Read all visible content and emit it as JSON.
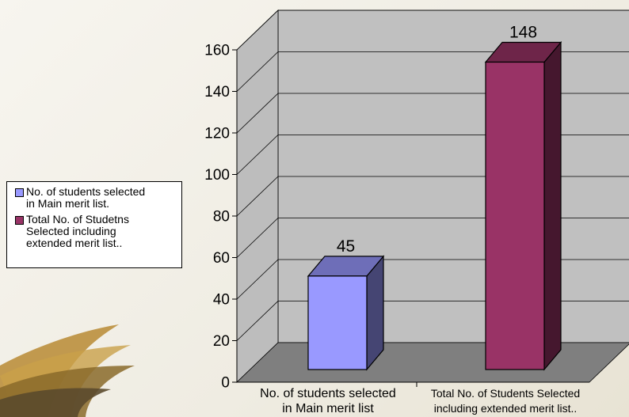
{
  "chart_data": {
    "type": "bar",
    "categories": [
      "No. of students selected\nin Main merit list",
      "Total No. of Students Selected\nincluding extended merit list.."
    ],
    "values": [
      45,
      148
    ],
    "data_labels": [
      "45",
      "148"
    ],
    "legend": [
      "No. of students selected\nin Main merit list.",
      "Total No. of Studetns\nSelected including\n extended merit list.."
    ],
    "colors": [
      "#9999ff",
      "#993366"
    ],
    "ylim": [
      0,
      160
    ],
    "y_ticks": [
      "0",
      "20",
      "40",
      "60",
      "80",
      "100",
      "120",
      "140",
      "160"
    ],
    "grid": true,
    "legend_position": "left",
    "style": "3d"
  }
}
